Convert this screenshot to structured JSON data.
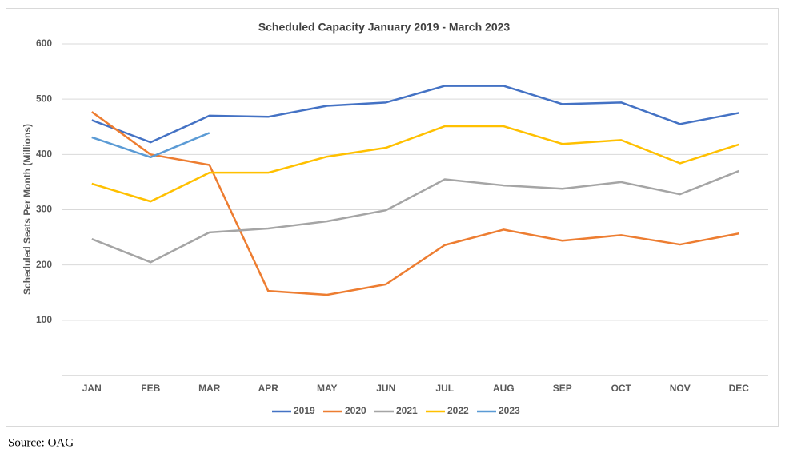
{
  "chart_data": {
    "type": "line",
    "title": "Scheduled Capacity January 2019   - March 2023",
    "y_label": "Scheduled Seats Per Month (Millions)",
    "source": "Source: OAG",
    "categories": [
      "JAN",
      "FEB",
      "MAR",
      "APR",
      "MAY",
      "JUN",
      "JUL",
      "AUG",
      "SEP",
      "OCT",
      "NOV",
      "DEC"
    ],
    "ylim": [
      0,
      600
    ],
    "yticks": [
      100,
      200,
      300,
      400,
      500,
      600
    ],
    "grid": true,
    "legend": "bottom",
    "series": [
      {
        "name": "2019",
        "color": "#4472c4",
        "values": [
          462,
          422,
          470,
          468,
          488,
          494,
          524,
          524,
          491,
          494,
          455,
          475
        ]
      },
      {
        "name": "2020",
        "color": "#ed7d31",
        "values": [
          477,
          400,
          381,
          153,
          146,
          165,
          236,
          264,
          244,
          254,
          237,
          257
        ]
      },
      {
        "name": "2021",
        "color": "#a5a5a5",
        "values": [
          247,
          205,
          259,
          266,
          279,
          299,
          355,
          344,
          338,
          350,
          328,
          370
        ]
      },
      {
        "name": "2022",
        "color": "#ffc000",
        "values": [
          347,
          315,
          367,
          367,
          396,
          412,
          451,
          451,
          419,
          426,
          384,
          418
        ]
      },
      {
        "name": "2023",
        "color": "#5b9bd5",
        "values": [
          431,
          395,
          439,
          null,
          null,
          null,
          null,
          null,
          null,
          null,
          null,
          null
        ]
      }
    ]
  }
}
